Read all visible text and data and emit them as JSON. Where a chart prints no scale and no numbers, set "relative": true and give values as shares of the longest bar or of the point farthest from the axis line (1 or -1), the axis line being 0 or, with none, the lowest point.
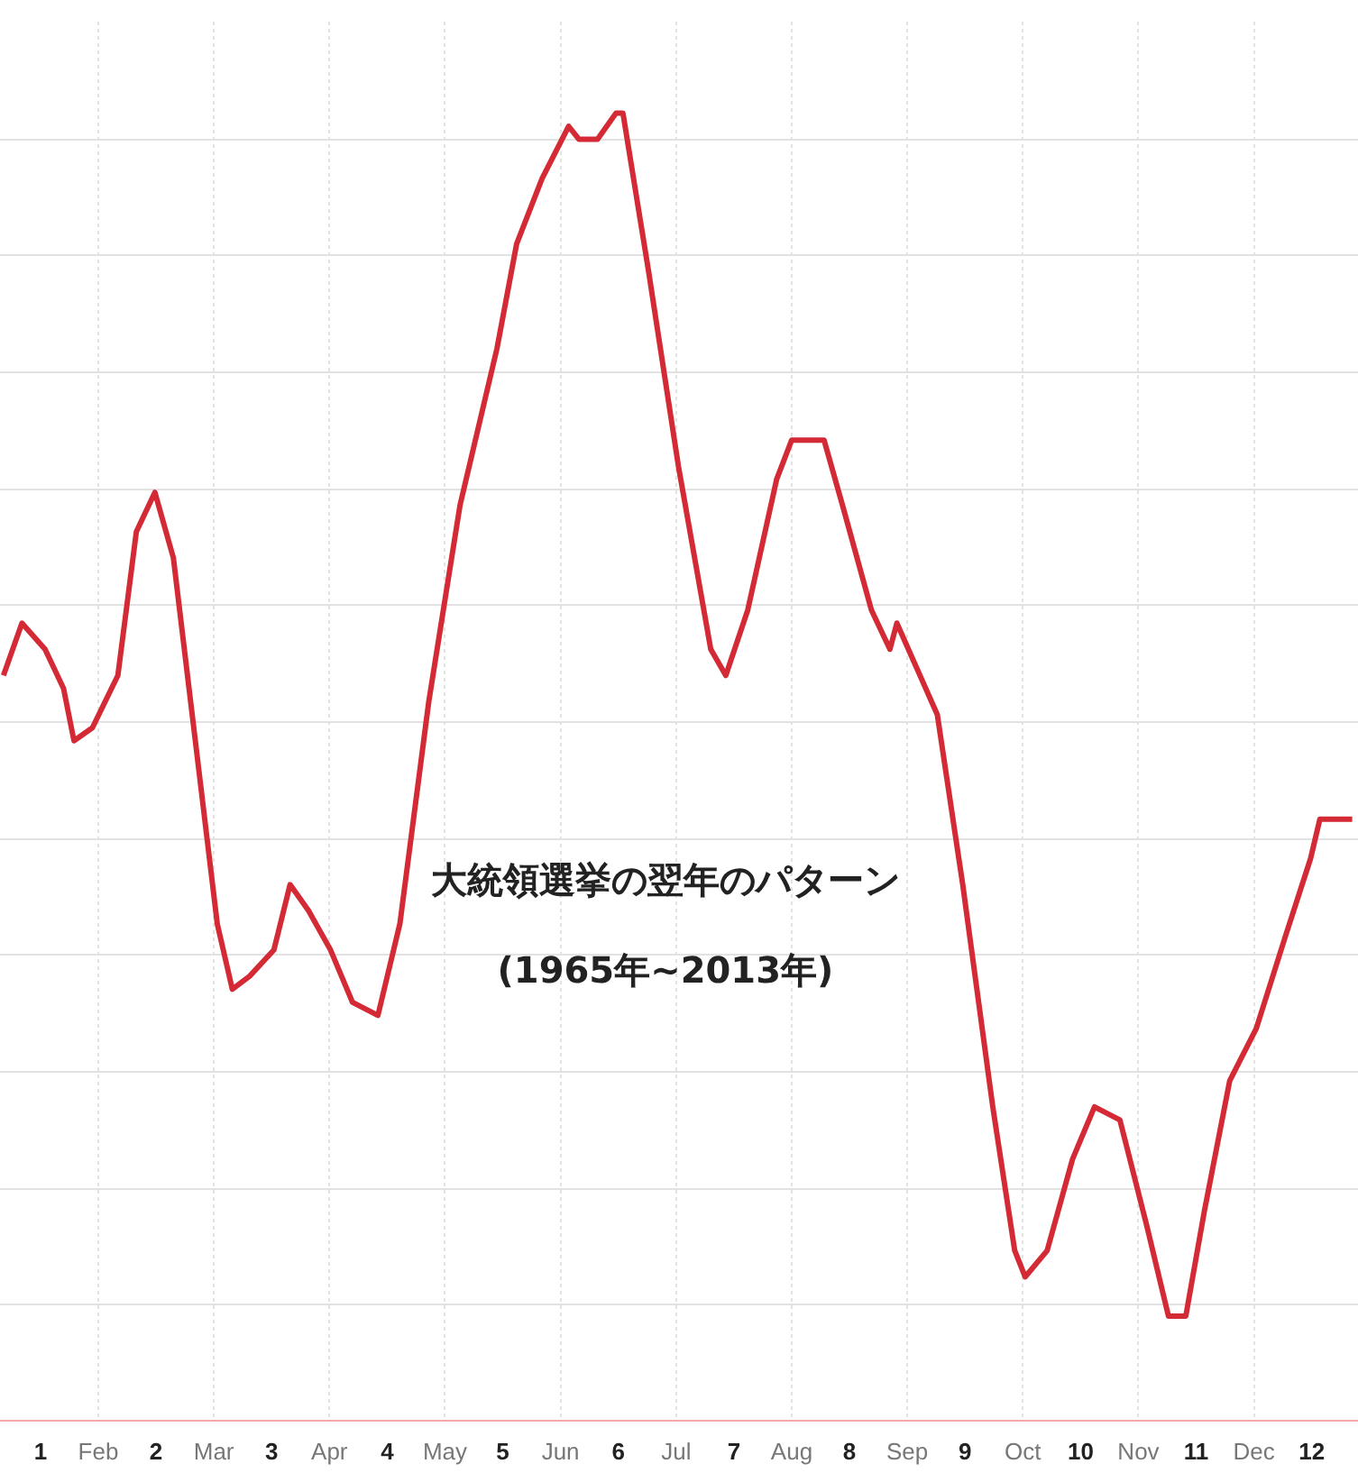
{
  "chart_data": {
    "type": "line",
    "relative": true,
    "grid": true,
    "legend": false,
    "marker": "none",
    "line_style": "solid",
    "xlim": [
      1.15,
      12.9
    ],
    "xticks": [
      {
        "value": 1.5,
        "label": "1"
      },
      {
        "value": 2,
        "label": "Feb"
      },
      {
        "value": 2.5,
        "label": "2"
      },
      {
        "value": 3,
        "label": "Mar"
      },
      {
        "value": 3.5,
        "label": "3"
      },
      {
        "value": 4,
        "label": "Apr"
      },
      {
        "value": 4.5,
        "label": "4"
      },
      {
        "value": 5,
        "label": "May"
      },
      {
        "value": 5.5,
        "label": "5"
      },
      {
        "value": 6,
        "label": "Jun"
      },
      {
        "value": 6.5,
        "label": "6"
      },
      {
        "value": 7,
        "label": "Jul"
      },
      {
        "value": 7.5,
        "label": "7"
      },
      {
        "value": 8,
        "label": "Aug"
      },
      {
        "value": 8.5,
        "label": "8"
      },
      {
        "value": 9,
        "label": "Sep"
      },
      {
        "value": 9.5,
        "label": "9"
      },
      {
        "value": 10,
        "label": "Oct"
      },
      {
        "value": 10.5,
        "label": "10"
      },
      {
        "value": 11,
        "label": "Nov"
      },
      {
        "value": 11.5,
        "label": "11"
      },
      {
        "value": 12,
        "label": "Dec"
      },
      {
        "value": 12.5,
        "label": "12"
      }
    ],
    "annotations": [
      "大統領選挙の翌年のパターン",
      "(1965年~2013年)"
    ],
    "series": [
      {
        "color": "#d42a35",
        "x": [
          1.18,
          1.34,
          1.54,
          1.7,
          1.79,
          1.95,
          2.17,
          2.33,
          2.49,
          2.65,
          2.84,
          3.03,
          3.16,
          3.31,
          3.52,
          3.66,
          3.82,
          4.01,
          4.2,
          4.42,
          4.61,
          4.86,
          5.13,
          5.45,
          5.62,
          5.84,
          6.07,
          6.16,
          6.32,
          6.48,
          6.54,
          6.76,
          7.02,
          7.3,
          7.43,
          7.62,
          7.87,
          8.0,
          8.28,
          8.44,
          8.69,
          8.85,
          8.91,
          9.06,
          9.26,
          9.48,
          9.74,
          9.93,
          10.02,
          10.21,
          10.43,
          10.62,
          10.84,
          11.07,
          11.26,
          11.41,
          11.57,
          11.79,
          12.02,
          12.27,
          12.49,
          12.57,
          12.85
        ],
        "values": [
          0.57,
          0.61,
          0.59,
          0.56,
          0.52,
          0.53,
          0.57,
          0.68,
          0.71,
          0.66,
          0.52,
          0.38,
          0.33,
          0.34,
          0.36,
          0.41,
          0.39,
          0.36,
          0.32,
          0.31,
          0.38,
          0.55,
          0.7,
          0.82,
          0.9,
          0.95,
          0.99,
          0.98,
          0.98,
          1,
          1,
          0.88,
          0.73,
          0.59,
          0.57,
          0.62,
          0.72,
          0.75,
          0.75,
          0.7,
          0.62,
          0.59,
          0.61,
          0.58,
          0.54,
          0.41,
          0.24,
          0.13,
          0.11,
          0.13,
          0.2,
          0.24,
          0.23,
          0.15,
          0.08,
          0.08,
          0.16,
          0.26,
          0.3,
          0.37,
          0.43,
          0.46,
          0.46
        ]
      }
    ]
  }
}
